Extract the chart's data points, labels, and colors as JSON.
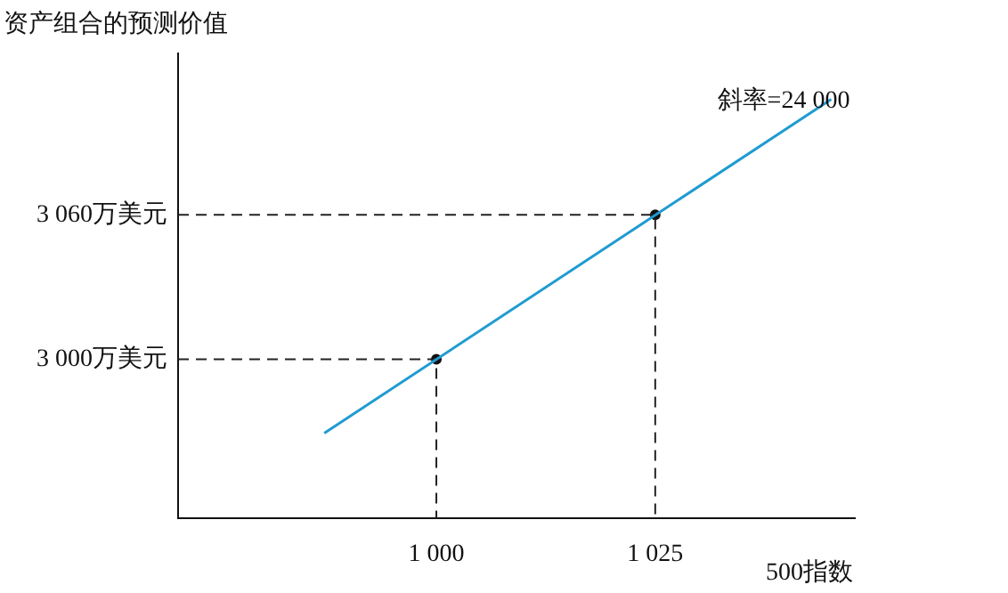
{
  "chart_data": {
    "type": "line",
    "ylabel": "资产组合的预测价值",
    "xlabel": "500指数",
    "xlim": [
      970.5,
      1047.8
    ],
    "ylim": [
      2934,
      3127
    ],
    "xticks": [
      {
        "value": 1000,
        "label": "1 000"
      },
      {
        "value": 1025,
        "label": "1 025"
      }
    ],
    "yticks": [
      {
        "value": 3000,
        "label": "3 000万美元"
      },
      {
        "value": 3060,
        "label": "3 060万美元"
      }
    ],
    "grid": false,
    "legend": false,
    "series": [
      {
        "color": "#1f9bd1",
        "x": [
          987.2,
          1045.1
        ],
        "values": [
          2969.3,
          3108
        ],
        "marker": "none"
      },
      {
        "type": "line",
        "color": "#222222",
        "x": [
          970.5,
          1000,
          1000
        ],
        "values": [
          3000,
          3000,
          2934
        ],
        "marker": "none",
        "line_style": "dashed"
      },
      {
        "type": "line",
        "color": "#222222",
        "x": [
          970.5,
          1025,
          1025
        ],
        "values": [
          3060,
          3060,
          2934
        ],
        "marker": "none",
        "line_style": "dashed"
      },
      {
        "type": "scatter",
        "color": "#111111",
        "x": [
          1000,
          1025
        ],
        "values": [
          3000,
          3060
        ],
        "marker": "circle"
      }
    ],
    "annotations": [
      "斜率=24 000"
    ]
  }
}
